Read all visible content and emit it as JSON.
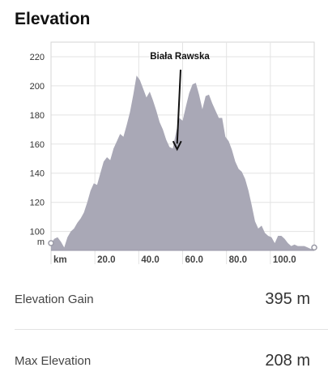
{
  "section_title": "Elevation",
  "chart_data": {
    "type": "area",
    "xlabel": "km",
    "ylabel": "m",
    "x_ticks": [
      20,
      40,
      60,
      80,
      100
    ],
    "x_tick_labels": [
      "20.0",
      "40.0",
      "60.0",
      "80.0",
      "100.0"
    ],
    "y_ticks": [
      100,
      120,
      140,
      160,
      180,
      200,
      220
    ],
    "xlim": [
      0,
      120
    ],
    "ylim": [
      87,
      230
    ],
    "grid": true,
    "fill_color": "#a9a8b6",
    "annotation": {
      "text": "Biała Rawska",
      "x_km": 57.5,
      "elev": 157
    },
    "x": [
      0,
      1.5,
      3,
      4.5,
      6,
      7.5,
      9,
      10.5,
      12,
      13.5,
      15,
      16.5,
      18,
      19.5,
      21,
      22.5,
      24,
      25.5,
      27,
      28.5,
      30,
      31.5,
      33,
      34.5,
      36,
      37.5,
      39,
      40.5,
      42,
      43.5,
      45,
      46.5,
      48,
      49.5,
      51,
      52.5,
      54,
      55.5,
      57,
      58.5,
      60,
      61.5,
      63,
      64.5,
      66,
      67.5,
      69,
      70.5,
      72,
      73.5,
      75,
      76.5,
      78,
      79.5,
      81,
      82.5,
      84,
      85.5,
      87,
      88.5,
      90,
      91.5,
      93,
      94.5,
      96,
      97.5,
      99,
      100.5,
      102,
      103.5,
      105,
      106.5,
      108,
      109.5,
      111,
      112.5,
      114,
      115.5,
      117,
      118.5,
      120
    ],
    "y": [
      92,
      95,
      96,
      93,
      89,
      96,
      100,
      102,
      106,
      109,
      113,
      120,
      128,
      133,
      132,
      140,
      148,
      151,
      149,
      157,
      162,
      167,
      165,
      173,
      182,
      194,
      207,
      204,
      198,
      192,
      196,
      190,
      183,
      175,
      170,
      163,
      158,
      157,
      168,
      178,
      176,
      186,
      195,
      201,
      202,
      194,
      184,
      193,
      194,
      188,
      183,
      178,
      178,
      165,
      162,
      156,
      148,
      143,
      141,
      136,
      128,
      118,
      107,
      102,
      104,
      99,
      97,
      96,
      92,
      97,
      97,
      95,
      92,
      90,
      91,
      90,
      90,
      90,
      89,
      88,
      89
    ]
  },
  "stats": [
    {
      "label": "Elevation Gain",
      "value": "395 m"
    },
    {
      "label": "Max Elevation",
      "value": "208 m"
    }
  ]
}
